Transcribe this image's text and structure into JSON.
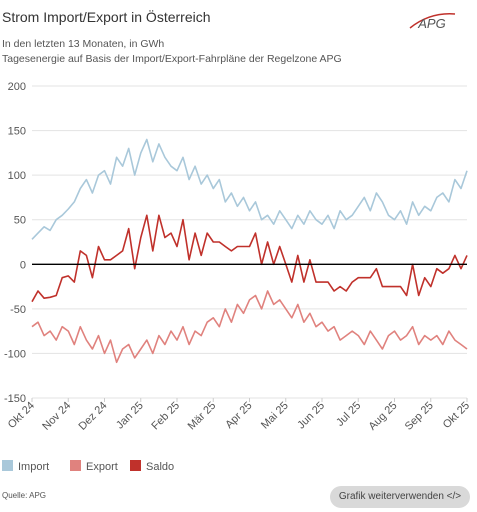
{
  "chart_data": {
    "type": "line",
    "title": "Strom Import/Export in Österreich",
    "subtitle": [
      "In den letzten 13 Monaten, in GWh",
      "Tagesenergie auf Basis der Import/Export-Fahrpläne der Regelzone APG"
    ],
    "logo": "APG",
    "source": "Quelle: APG",
    "button": "Grafik weiterverwenden </>",
    "categories": [
      "Okt 24",
      null,
      null,
      null,
      null,
      null,
      "Nov 24",
      null,
      null,
      null,
      null,
      null,
      "Dez 24",
      null,
      null,
      null,
      null,
      null,
      "Jan 25",
      null,
      null,
      null,
      null,
      null,
      "Feb 25",
      null,
      null,
      null,
      null,
      null,
      "Mär 25",
      null,
      null,
      null,
      null,
      null,
      "Apr 25",
      null,
      null,
      null,
      null,
      null,
      "Mai 25",
      null,
      null,
      null,
      null,
      null,
      "Jun 25",
      null,
      null,
      null,
      null,
      null,
      "Jul 25",
      null,
      null,
      null,
      null,
      null,
      "Aug 25",
      null,
      null,
      null,
      null,
      null,
      "Sep 25",
      null,
      null,
      null,
      null,
      null,
      "Okt 25"
    ],
    "series": [
      {
        "name": "Import",
        "color": "#a9c8da",
        "values": [
          28,
          35,
          42,
          38,
          50,
          55,
          62,
          70,
          85,
          95,
          80,
          100,
          105,
          90,
          120,
          110,
          130,
          100,
          125,
          140,
          115,
          135,
          120,
          110,
          105,
          120,
          95,
          110,
          90,
          100,
          85,
          95,
          70,
          80,
          65,
          75,
          60,
          70,
          50,
          55,
          45,
          60,
          50,
          40,
          55,
          45,
          60,
          50,
          45,
          55,
          40,
          60,
          50,
          55,
          65,
          75,
          60,
          80,
          70,
          55,
          50,
          60,
          45,
          70,
          55,
          65,
          60,
          75,
          80,
          70,
          95,
          85,
          105
        ]
      },
      {
        "name": "Export",
        "color": "#e0827e",
        "values": [
          -70,
          -65,
          -80,
          -75,
          -85,
          -70,
          -75,
          -90,
          -70,
          -85,
          -95,
          -80,
          -100,
          -85,
          -110,
          -95,
          -90,
          -105,
          -95,
          -85,
          -100,
          -80,
          -90,
          -75,
          -85,
          -70,
          -90,
          -75,
          -80,
          -65,
          -60,
          -70,
          -50,
          -65,
          -45,
          -55,
          -40,
          -35,
          -50,
          -30,
          -45,
          -40,
          -50,
          -60,
          -45,
          -65,
          -55,
          -70,
          -65,
          -75,
          -70,
          -85,
          -80,
          -75,
          -80,
          -90,
          -75,
          -85,
          -95,
          -80,
          -75,
          -85,
          -80,
          -70,
          -90,
          -80,
          -85,
          -80,
          -90,
          -75,
          -85,
          -90,
          -95
        ]
      },
      {
        "name": "Saldo",
        "color": "#c0312b",
        "values": [
          -42,
          -30,
          -38,
          -37,
          -35,
          -15,
          -13,
          -20,
          15,
          10,
          -15,
          20,
          5,
          5,
          10,
          15,
          40,
          -5,
          30,
          55,
          15,
          55,
          30,
          35,
          20,
          50,
          5,
          35,
          10,
          35,
          25,
          25,
          20,
          15,
          20,
          20,
          20,
          35,
          0,
          25,
          0,
          20,
          0,
          -20,
          10,
          -20,
          5,
          -20,
          -20,
          -20,
          -30,
          -25,
          -30,
          -20,
          -15,
          -15,
          -15,
          -5,
          -25,
          -25,
          -25,
          -25,
          -35,
          0,
          -35,
          -15,
          -25,
          -5,
          -10,
          -5,
          10,
          -5,
          10
        ]
      }
    ],
    "ylim": [
      -150,
      200
    ],
    "yticks": [
      200,
      150,
      100,
      50,
      0,
      -50,
      -100,
      -150
    ],
    "grid": true,
    "legend": "bottom"
  }
}
